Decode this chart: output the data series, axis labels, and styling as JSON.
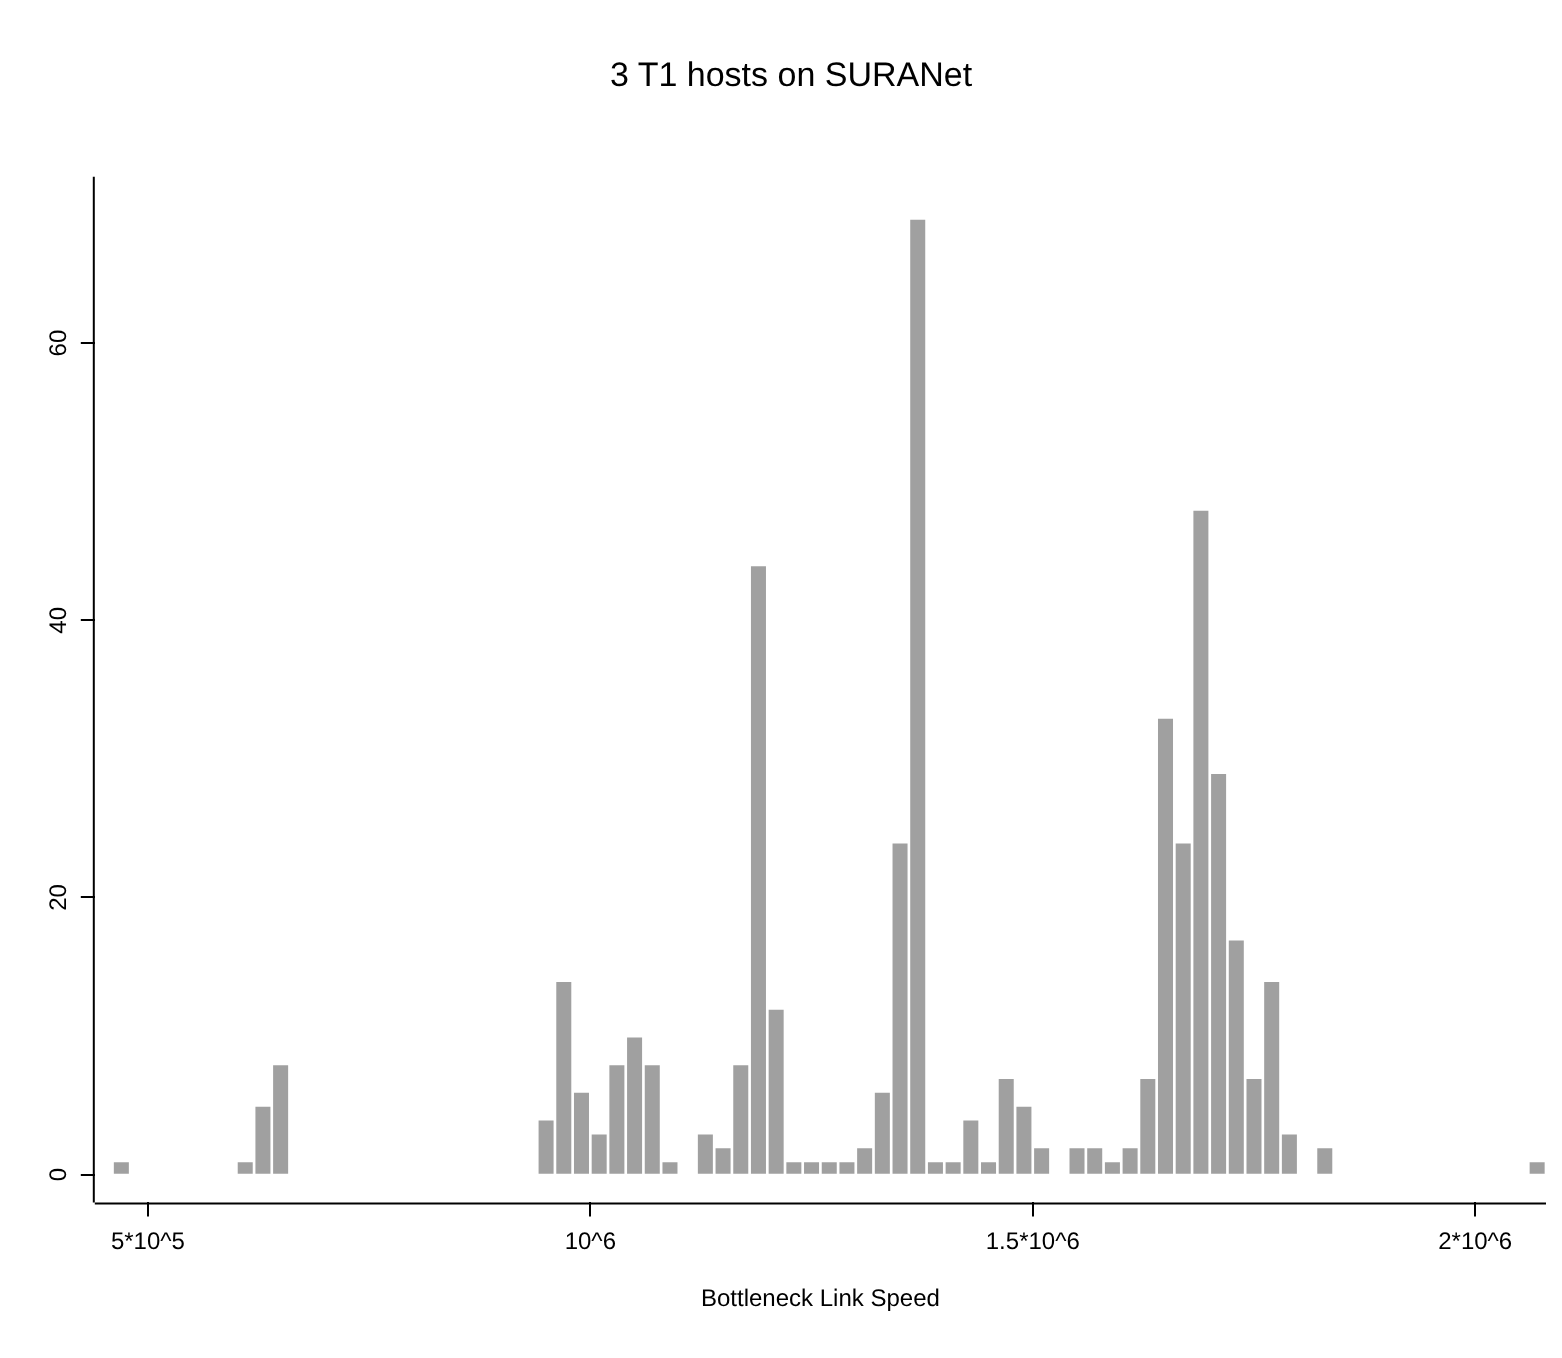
{
  "chart_data": {
    "type": "histogram",
    "title": "3 T1 hosts on SURANet",
    "xlabel": "Bottleneck Link Speed",
    "bins": [
      460000,
      480000,
      500000,
      520000,
      540000,
      560000,
      580000,
      600000,
      620000,
      640000,
      660000,
      680000,
      700000,
      720000,
      740000,
      760000,
      780000,
      800000,
      820000,
      840000,
      860000,
      880000,
      900000,
      920000,
      940000,
      960000,
      980000,
      1000000,
      1020000,
      1040000,
      1060000,
      1080000,
      1100000,
      1120000,
      1140000,
      1160000,
      1180000,
      1200000,
      1220000,
      1240000,
      1260000,
      1280000,
      1300000,
      1320000,
      1340000,
      1360000,
      1380000,
      1400000,
      1420000,
      1440000,
      1460000,
      1480000,
      1500000,
      1520000,
      1540000,
      1560000,
      1580000,
      1600000,
      1620000,
      1640000,
      1660000,
      1680000,
      1700000,
      1720000,
      1740000,
      1760000,
      1780000,
      1800000,
      1820000,
      1840000,
      1860000,
      1880000,
      1900000,
      1920000,
      1940000,
      1960000,
      1980000,
      2000000,
      2020000,
      2040000,
      2060000,
      2080000
    ],
    "values": [
      1,
      0,
      0,
      0,
      0,
      0,
      0,
      1,
      5,
      8,
      0,
      0,
      0,
      0,
      0,
      0,
      0,
      0,
      0,
      0,
      0,
      0,
      0,
      0,
      4,
      14,
      6,
      3,
      8,
      10,
      8,
      1,
      0,
      3,
      2,
      8,
      44,
      12,
      1,
      1,
      1,
      1,
      2,
      6,
      24,
      69,
      1,
      1,
      4,
      1,
      7,
      5,
      2,
      0,
      2,
      2,
      1,
      2,
      7,
      33,
      24,
      48,
      29,
      17,
      7,
      14,
      3,
      0,
      2,
      0,
      0,
      0,
      0,
      0,
      0,
      0,
      0,
      0,
      0,
      0,
      1
    ],
    "color": "#a0a0a0",
    "xlim": [
      440000,
      2080000
    ],
    "xticks": [
      {
        "value": 500000,
        "label": "5*10^5"
      },
      {
        "value": 1000000,
        "label": "10^6"
      },
      {
        "value": 1500000,
        "label": "1.5*10^6"
      },
      {
        "value": 2000000,
        "label": "2*10^6"
      }
    ],
    "ylim": [
      -2,
      72
    ],
    "yticks": [
      0,
      20,
      40,
      60
    ],
    "grid": false,
    "legend": false
  }
}
